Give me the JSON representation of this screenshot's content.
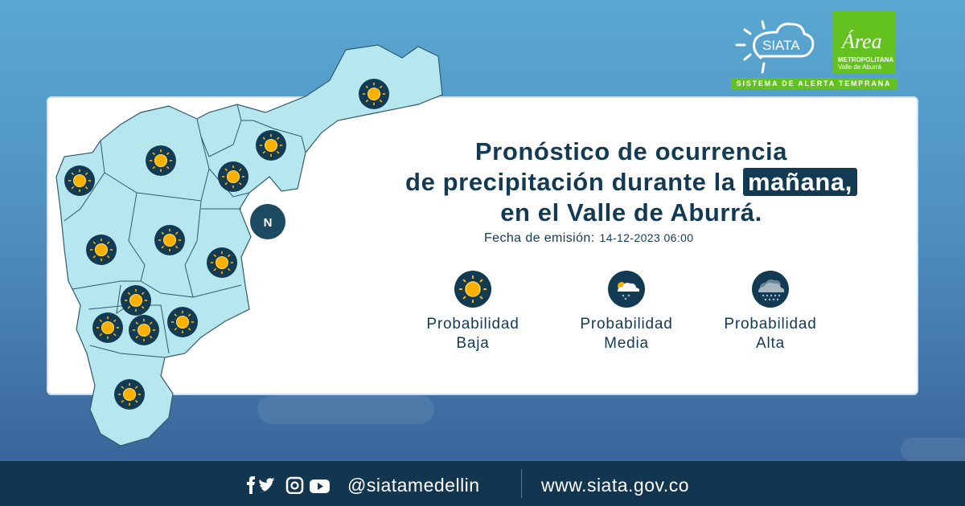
{
  "title": {
    "line1": "Pronóstico de ocurrencia",
    "line2_pre": "de precipitación durante la",
    "line2_highlight": "mañana,",
    "line3": "en el Valle de Aburrá."
  },
  "issue": {
    "label": "Fecha de emisión:",
    "value": "14-12-2023 06:00"
  },
  "legend": [
    {
      "icon": "sun-icon",
      "line1": "Probabilidad",
      "line2": "Baja"
    },
    {
      "icon": "partly-cloudy-rain-icon",
      "line1": "Probabilidad",
      "line2": "Media"
    },
    {
      "icon": "heavy-rain-cloud-icon",
      "line1": "Probabilidad",
      "line2": "Alta"
    }
  ],
  "map": {
    "compass": "N",
    "zone_forecasts": [
      "Baja",
      "Baja",
      "Baja",
      "Baja",
      "Baja",
      "Baja",
      "Baja",
      "Baja",
      "Baja",
      "Baja",
      "Baja",
      "Baja",
      "Baja"
    ]
  },
  "logos": {
    "siata": "SIATA",
    "area_script": "Área",
    "area_line1": "METROPOLITANA",
    "area_line2": "Valle de Aburrá",
    "tagline": "SISTEMA DE ALERTA TEMPRANA"
  },
  "footer": {
    "social_icons": [
      "facebook-icon",
      "twitter-icon",
      "instagram-icon",
      "youtube-icon"
    ],
    "handle": "@siatamedellin",
    "website": "www.siata.gov.co"
  },
  "colors": {
    "navy": "#133a53",
    "sun": "#f9b000",
    "map_fill": "#b6e6ee",
    "green": "#63c21f"
  }
}
